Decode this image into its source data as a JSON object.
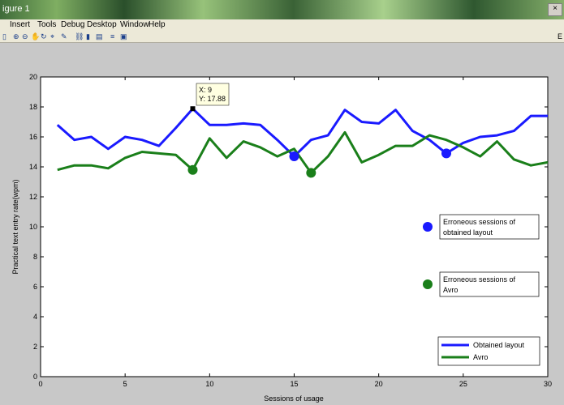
{
  "window": {
    "title": "igure 1",
    "close_symbol": "×"
  },
  "menu": [
    "Insert",
    "Tools",
    "Debug",
    "Desktop",
    "Window",
    "Help"
  ],
  "toolbar": {
    "icons": [
      "new-figure-icon",
      "zoom-in-icon",
      "zoom-out-icon",
      "pan-icon",
      "rotate-icon",
      "data-cursor-icon",
      "brush-icon",
      "link-icon",
      "colorbar-icon",
      "legend-icon",
      "hide-tools-icon",
      "show-tools-icon"
    ],
    "right_label": "E"
  },
  "datatip": {
    "x_label": "X: 9",
    "y_label": "Y: 17.88"
  },
  "legend_box_1": {
    "line1": "Erroneous sessions of",
    "line2": "obtained layout",
    "color": "#1a1aff"
  },
  "legend_box_2": {
    "line1": "Erroneous sessions of",
    "line2": "Avro",
    "color": "#1a7f1a"
  },
  "legend_main": {
    "entries": [
      "Obtained layout",
      "Avro"
    ]
  },
  "chart_data": {
    "type": "line",
    "xlabel": "Sessions of usage",
    "ylabel": "Practical text entry rate(wpm)",
    "xlim": [
      0,
      30
    ],
    "ylim": [
      0,
      20
    ],
    "xticks": [
      0,
      5,
      10,
      15,
      20,
      25,
      30
    ],
    "yticks": [
      0,
      2,
      4,
      6,
      8,
      10,
      12,
      14,
      16,
      18,
      20
    ],
    "grid": false,
    "series": [
      {
        "name": "Obtained layout",
        "color": "#1a1aff",
        "x": [
          1,
          2,
          3,
          4,
          5,
          6,
          7,
          8,
          9,
          10,
          11,
          12,
          13,
          14,
          15,
          16,
          17,
          18,
          19,
          20,
          21,
          22,
          23,
          24,
          25,
          26,
          27,
          28,
          29,
          30
        ],
        "y": [
          16.8,
          15.8,
          16.0,
          15.2,
          16.0,
          15.8,
          15.4,
          16.6,
          17.88,
          16.8,
          16.8,
          16.9,
          16.8,
          15.8,
          14.7,
          15.8,
          16.1,
          17.8,
          17.0,
          16.9,
          17.8,
          16.4,
          15.8,
          14.9,
          15.6,
          16.0,
          16.1,
          16.4,
          17.4,
          17.4
        ],
        "error_points": [
          {
            "x": 15,
            "y": 14.7
          },
          {
            "x": 24,
            "y": 14.9
          }
        ]
      },
      {
        "name": "Avro",
        "color": "#1a7f1a",
        "x": [
          1,
          2,
          3,
          4,
          5,
          6,
          7,
          8,
          9,
          10,
          11,
          12,
          13,
          14,
          15,
          16,
          17,
          18,
          19,
          20,
          21,
          22,
          23,
          24,
          25,
          26,
          27,
          28,
          29,
          30
        ],
        "y": [
          13.8,
          14.1,
          14.1,
          13.9,
          14.6,
          15.0,
          14.9,
          14.8,
          13.8,
          15.9,
          14.6,
          15.7,
          15.3,
          14.7,
          15.2,
          13.6,
          14.7,
          16.3,
          14.3,
          14.8,
          15.4,
          15.4,
          16.1,
          15.8,
          15.3,
          14.7,
          15.7,
          14.5,
          14.1,
          14.3
        ],
        "error_points": [
          {
            "x": 9,
            "y": 13.8
          },
          {
            "x": 16,
            "y": 13.6
          }
        ]
      }
    ]
  }
}
